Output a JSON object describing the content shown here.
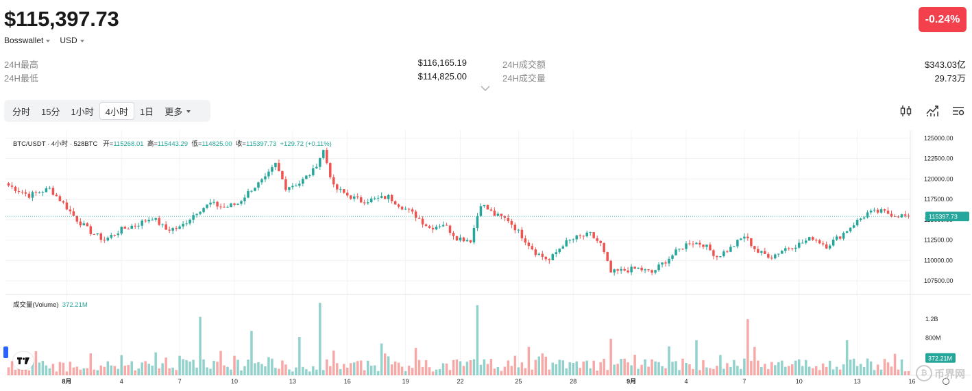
{
  "header": {
    "price": "$115,397.73",
    "change": "-0.24%",
    "source_label": "Bosswallet",
    "currency_label": "USD"
  },
  "stats": {
    "high_label": "24H最高",
    "high_value": "$116,165.19",
    "low_label": "24H最低",
    "low_value": "$114,825.00",
    "turnover_label": "24H成交额",
    "turnover_value": "$343.03亿",
    "volume_label": "24H成交量",
    "volume_value": "29.73万"
  },
  "tabs": [
    "分时",
    "15分",
    "1小时",
    "4小时",
    "1日",
    "更多"
  ],
  "active_tab": "4小时",
  "icons": [
    "candlestick-icon",
    "indicator-icon",
    "settings-icon"
  ],
  "legend": {
    "symbol": "BTC/USDT · 4小时 · 528BTC",
    "open_label": "开=",
    "open": "115268.01",
    "high_label": "高=",
    "high": "115443.29",
    "low_label": "低=",
    "low": "114825.00",
    "close_label": "收=",
    "close": "115397.73",
    "change": "+129.72 (+0.11%)"
  },
  "volume_legend": {
    "label": "成交量(Volume)",
    "value": "372.21M"
  },
  "colors": {
    "up": "#26a69a",
    "down": "#ef5350",
    "badge": "#f2404d",
    "tag": "#26a69a"
  },
  "watermark": "币界网",
  "chart_data": {
    "type": "candlestick",
    "price_axis_ticks": [
      "125000.00",
      "122500.00",
      "120000.00",
      "117500.00",
      "115000.00",
      "112500.00",
      "110000.00",
      "107500.00"
    ],
    "price_range": [
      106000,
      126000
    ],
    "last_price_tag": "115397.73",
    "volume_axis_ticks": [
      "1.2B",
      "800M"
    ],
    "last_volume_tag": "372.21M",
    "x_tick_labels": [
      "8月",
      "4",
      "7",
      "10",
      "13",
      "16",
      "19",
      "22",
      "25",
      "28",
      "9月",
      "4",
      "7",
      "10",
      "13",
      "16"
    ],
    "close_path": [
      [
        0,
        119200
      ],
      [
        6,
        118000
      ],
      [
        12,
        118800
      ],
      [
        16,
        117000
      ],
      [
        20,
        115000
      ],
      [
        24,
        113500
      ],
      [
        28,
        112500
      ],
      [
        33,
        113800
      ],
      [
        38,
        114500
      ],
      [
        42,
        115300
      ],
      [
        46,
        113800
      ],
      [
        50,
        114000
      ],
      [
        55,
        116000
      ],
      [
        59,
        117000
      ],
      [
        63,
        116500
      ],
      [
        67,
        117000
      ],
      [
        71,
        118800
      ],
      [
        75,
        120000
      ],
      [
        78,
        121800
      ],
      [
        81,
        119000
      ],
      [
        85,
        119500
      ],
      [
        89,
        121000
      ],
      [
        92,
        123500
      ],
      [
        95,
        119000
      ],
      [
        99,
        118000
      ],
      [
        103,
        117300
      ],
      [
        107,
        117500
      ],
      [
        111,
        117800
      ],
      [
        115,
        116600
      ],
      [
        119,
        115500
      ],
      [
        123,
        114000
      ],
      [
        127,
        114500
      ],
      [
        131,
        112800
      ],
      [
        135,
        112500
      ],
      [
        138,
        117000
      ],
      [
        142,
        115600
      ],
      [
        146,
        115000
      ],
      [
        150,
        113000
      ],
      [
        154,
        111000
      ],
      [
        158,
        110000
      ],
      [
        162,
        112000
      ],
      [
        166,
        112800
      ],
      [
        170,
        113200
      ],
      [
        173,
        112000
      ],
      [
        176,
        108500
      ],
      [
        180,
        108800
      ],
      [
        184,
        109000
      ],
      [
        188,
        108500
      ],
      [
        191,
        109600
      ],
      [
        195,
        111000
      ],
      [
        199,
        112300
      ],
      [
        203,
        112000
      ],
      [
        207,
        110500
      ],
      [
        211,
        111500
      ],
      [
        215,
        113000
      ],
      [
        219,
        111000
      ],
      [
        223,
        110500
      ],
      [
        227,
        111500
      ],
      [
        231,
        112000
      ],
      [
        235,
        112800
      ],
      [
        239,
        111800
      ],
      [
        243,
        113000
      ],
      [
        247,
        114500
      ],
      [
        251,
        115800
      ],
      [
        255,
        116000
      ],
      [
        259,
        115600
      ],
      [
        263,
        115397.73
      ]
    ],
    "volume_spikes": [
      {
        "i": 56,
        "v": 1.25
      },
      {
        "i": 71,
        "v": 0.95
      },
      {
        "i": 85,
        "v": 0.82
      },
      {
        "i": 91,
        "v": 1.55
      },
      {
        "i": 109,
        "v": 0.68
      },
      {
        "i": 137,
        "v": 1.5
      },
      {
        "i": 176,
        "v": 0.78
      },
      {
        "i": 201,
        "v": 0.75
      },
      {
        "i": 216,
        "v": 1.2
      },
      {
        "i": 245,
        "v": 0.75
      }
    ]
  }
}
